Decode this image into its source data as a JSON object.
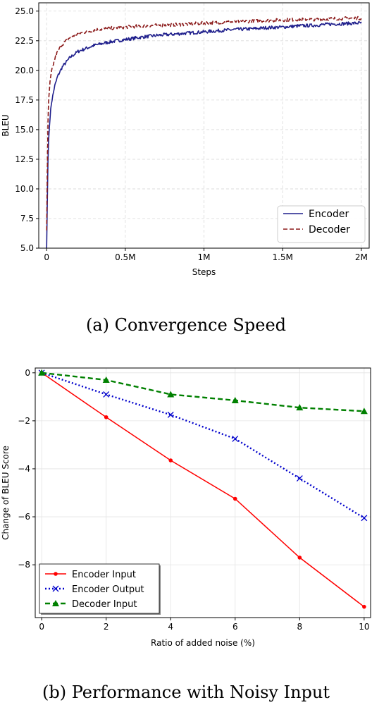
{
  "chart_data": [
    {
      "type": "line",
      "caption": "(a)  Convergence Speed",
      "xlabel": "Steps",
      "ylabel": "BLEU",
      "xlim": [
        -0.05,
        2.05
      ],
      "ylim": [
        5.0,
        25.7
      ],
      "x_tick_values": [
        0,
        0.5,
        1,
        1.5,
        2
      ],
      "x_tick_labels": [
        "0",
        "0.5M",
        "1M",
        "1.5M",
        "2M"
      ],
      "y_ticks": [
        5.0,
        7.5,
        10.0,
        12.5,
        15.0,
        17.5,
        20.0,
        22.5,
        25.0
      ],
      "y_tick_labels": [
        "5.0",
        "7.5",
        "10.0",
        "12.5",
        "15.0",
        "17.5",
        "20.0",
        "22.5",
        "25.0"
      ],
      "grid": true,
      "legend": "bottom-right",
      "x_unit_note": "millions of steps",
      "series": [
        {
          "name": "Encoder",
          "color": "#1f1f8c",
          "style": "solid",
          "x": [
            0,
            0.01,
            0.02,
            0.03,
            0.05,
            0.07,
            0.1,
            0.15,
            0.2,
            0.3,
            0.4,
            0.5,
            0.6,
            0.7,
            0.8,
            0.9,
            1.0,
            1.1,
            1.2,
            1.3,
            1.4,
            1.5,
            1.6,
            1.7,
            1.8,
            1.9,
            2.0
          ],
          "y": [
            5.0,
            13.5,
            15.8,
            17.2,
            18.6,
            19.5,
            20.3,
            21.1,
            21.6,
            22.1,
            22.4,
            22.6,
            22.8,
            22.95,
            23.05,
            23.15,
            23.25,
            23.35,
            23.45,
            23.5,
            23.6,
            23.65,
            23.75,
            23.8,
            23.9,
            23.95,
            24.0
          ]
        },
        {
          "name": "Decoder",
          "color": "#8b1a1a",
          "style": "dashed",
          "x": [
            0,
            0.01,
            0.02,
            0.03,
            0.05,
            0.07,
            0.1,
            0.15,
            0.2,
            0.3,
            0.4,
            0.5,
            0.6,
            0.7,
            0.8,
            0.9,
            1.0,
            1.1,
            1.2,
            1.3,
            1.4,
            1.5,
            1.6,
            1.7,
            1.8,
            1.9,
            2.0
          ],
          "y": [
            6.5,
            17.0,
            18.8,
            19.8,
            20.9,
            21.6,
            22.2,
            22.8,
            23.1,
            23.4,
            23.55,
            23.65,
            23.75,
            23.8,
            23.85,
            23.9,
            24.0,
            24.05,
            24.1,
            24.15,
            24.2,
            24.25,
            24.3,
            24.3,
            24.35,
            24.4,
            24.4
          ]
        }
      ]
    },
    {
      "type": "line",
      "caption": "(b)  Performance with Noisy Input",
      "xlabel": "Ratio of added noise (%)",
      "ylabel": "Change of BLEU Score",
      "xlim": [
        -0.2,
        10.2
      ],
      "ylim": [
        -10.2,
        0.2
      ],
      "x_ticks": [
        0,
        2,
        4,
        6,
        8,
        10
      ],
      "x_tick_labels": [
        "0",
        "2",
        "4",
        "6",
        "8",
        "10"
      ],
      "y_ticks": [
        0,
        -2,
        -4,
        -6,
        -8
      ],
      "y_tick_labels": [
        "0",
        "−2",
        "−4",
        "−6",
        "−8"
      ],
      "grid": true,
      "legend": "bottom-left",
      "x": [
        0,
        2,
        4,
        6,
        8,
        10
      ],
      "series": [
        {
          "name": "Encoder Input",
          "color": "#ff0000",
          "style": "solid",
          "marker": "dot",
          "values": [
            0,
            -1.85,
            -3.65,
            -5.25,
            -7.7,
            -9.75
          ]
        },
        {
          "name": "Encoder Output",
          "color": "#0000cc",
          "style": "dotted",
          "marker": "x",
          "values": [
            0,
            -0.9,
            -1.75,
            -2.75,
            -4.4,
            -6.05
          ]
        },
        {
          "name": "Decoder Input",
          "color": "#008000",
          "style": "dashed",
          "marker": "triangle",
          "values": [
            0,
            -0.3,
            -0.9,
            -1.15,
            -1.45,
            -1.6
          ]
        }
      ]
    }
  ]
}
